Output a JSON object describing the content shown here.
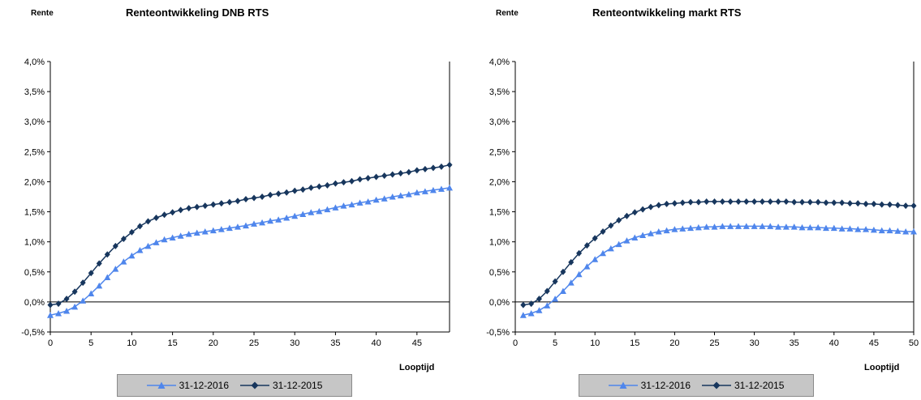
{
  "chart_data": [
    {
      "type": "line",
      "title": "Renteontwikkeling DNB RTS",
      "ylabel": "Rente",
      "xlabel": "Looptijd",
      "xlim": [
        0,
        49
      ],
      "xticks": [
        0,
        5,
        10,
        15,
        20,
        25,
        30,
        35,
        40,
        45
      ],
      "ylim": [
        -0.5,
        4.0
      ],
      "yticks": [
        "-0,5%",
        "0,0%",
        "0,5%",
        "1,0%",
        "1,5%",
        "2,0%",
        "2,5%",
        "3,0%",
        "3,5%",
        "4,0%"
      ],
      "grid": false,
      "legend": "bottom",
      "series": [
        {
          "name": "31-12-2016",
          "color": "#4f86ec",
          "marker": "triangle",
          "x": [
            0,
            1,
            2,
            3,
            4,
            5,
            6,
            7,
            8,
            9,
            10,
            11,
            12,
            13,
            14,
            15,
            16,
            17,
            18,
            19,
            20,
            21,
            22,
            23,
            24,
            25,
            26,
            27,
            28,
            29,
            30,
            31,
            32,
            33,
            34,
            35,
            36,
            37,
            38,
            39,
            40,
            41,
            42,
            43,
            44,
            45,
            46,
            47,
            48,
            49
          ],
          "y": [
            -0.22,
            -0.19,
            -0.15,
            -0.08,
            0.02,
            0.14,
            0.27,
            0.41,
            0.55,
            0.67,
            0.77,
            0.86,
            0.93,
            0.99,
            1.04,
            1.07,
            1.1,
            1.13,
            1.15,
            1.17,
            1.19,
            1.21,
            1.23,
            1.25,
            1.27,
            1.3,
            1.32,
            1.35,
            1.37,
            1.4,
            1.43,
            1.46,
            1.49,
            1.51,
            1.54,
            1.57,
            1.6,
            1.62,
            1.65,
            1.67,
            1.7,
            1.72,
            1.75,
            1.77,
            1.79,
            1.82,
            1.84,
            1.86,
            1.88,
            1.9
          ]
        },
        {
          "name": "31-12-2015",
          "color": "#17365d",
          "marker": "diamond",
          "x": [
            0,
            1,
            2,
            3,
            4,
            5,
            6,
            7,
            8,
            9,
            10,
            11,
            12,
            13,
            14,
            15,
            16,
            17,
            18,
            19,
            20,
            21,
            22,
            23,
            24,
            25,
            26,
            27,
            28,
            29,
            30,
            31,
            32,
            33,
            34,
            35,
            36,
            37,
            38,
            39,
            40,
            41,
            42,
            43,
            44,
            45,
            46,
            47,
            48,
            49
          ],
          "y": [
            -0.05,
            -0.03,
            0.05,
            0.17,
            0.32,
            0.48,
            0.64,
            0.79,
            0.93,
            1.05,
            1.16,
            1.26,
            1.34,
            1.4,
            1.45,
            1.49,
            1.53,
            1.56,
            1.58,
            1.6,
            1.62,
            1.64,
            1.66,
            1.68,
            1.71,
            1.73,
            1.75,
            1.78,
            1.8,
            1.82,
            1.85,
            1.87,
            1.9,
            1.92,
            1.94,
            1.97,
            1.99,
            2.01,
            2.04,
            2.06,
            2.08,
            2.1,
            2.12,
            2.14,
            2.16,
            2.19,
            2.21,
            2.23,
            2.25,
            2.28
          ]
        }
      ]
    },
    {
      "type": "line",
      "title": "Renteontwikkeling markt RTS",
      "ylabel": "Rente",
      "xlabel": "Looptijd",
      "xlim": [
        0,
        50
      ],
      "xticks": [
        0,
        5,
        10,
        15,
        20,
        25,
        30,
        35,
        40,
        45,
        50
      ],
      "ylim": [
        -0.5,
        4.0
      ],
      "yticks": [
        "-0,5%",
        "0,0%",
        "0,5%",
        "1,0%",
        "1,5%",
        "2,0%",
        "2,5%",
        "3,0%",
        "3,5%",
        "4,0%"
      ],
      "grid": false,
      "legend": "bottom",
      "series": [
        {
          "name": "31-12-2016",
          "color": "#4f86ec",
          "marker": "triangle",
          "x": [
            1,
            2,
            3,
            4,
            5,
            6,
            7,
            8,
            9,
            10,
            11,
            12,
            13,
            14,
            15,
            16,
            17,
            18,
            19,
            20,
            21,
            22,
            23,
            24,
            25,
            26,
            27,
            28,
            29,
            30,
            31,
            32,
            33,
            34,
            35,
            36,
            37,
            38,
            39,
            40,
            41,
            42,
            43,
            44,
            45,
            46,
            47,
            48,
            49,
            50
          ],
          "y": [
            -0.22,
            -0.19,
            -0.14,
            -0.06,
            0.05,
            0.18,
            0.32,
            0.46,
            0.59,
            0.71,
            0.81,
            0.89,
            0.96,
            1.02,
            1.07,
            1.11,
            1.14,
            1.17,
            1.19,
            1.21,
            1.22,
            1.23,
            1.24,
            1.25,
            1.25,
            1.26,
            1.26,
            1.26,
            1.26,
            1.26,
            1.26,
            1.26,
            1.25,
            1.25,
            1.25,
            1.24,
            1.24,
            1.24,
            1.23,
            1.23,
            1.22,
            1.22,
            1.21,
            1.21,
            1.2,
            1.19,
            1.19,
            1.18,
            1.17,
            1.17
          ]
        },
        {
          "name": "31-12-2015",
          "color": "#17365d",
          "marker": "diamond",
          "x": [
            1,
            2,
            3,
            4,
            5,
            6,
            7,
            8,
            9,
            10,
            11,
            12,
            13,
            14,
            15,
            16,
            17,
            18,
            19,
            20,
            21,
            22,
            23,
            24,
            25,
            26,
            27,
            28,
            29,
            30,
            31,
            32,
            33,
            34,
            35,
            36,
            37,
            38,
            39,
            40,
            41,
            42,
            43,
            44,
            45,
            46,
            47,
            48,
            49,
            50
          ],
          "y": [
            -0.05,
            -0.03,
            0.05,
            0.18,
            0.34,
            0.5,
            0.66,
            0.81,
            0.94,
            1.06,
            1.17,
            1.27,
            1.36,
            1.43,
            1.49,
            1.54,
            1.58,
            1.61,
            1.63,
            1.64,
            1.65,
            1.66,
            1.66,
            1.67,
            1.67,
            1.67,
            1.67,
            1.67,
            1.67,
            1.67,
            1.67,
            1.67,
            1.67,
            1.67,
            1.66,
            1.66,
            1.66,
            1.66,
            1.65,
            1.65,
            1.65,
            1.64,
            1.64,
            1.63,
            1.63,
            1.62,
            1.62,
            1.61,
            1.6,
            1.6
          ]
        }
      ]
    }
  ]
}
